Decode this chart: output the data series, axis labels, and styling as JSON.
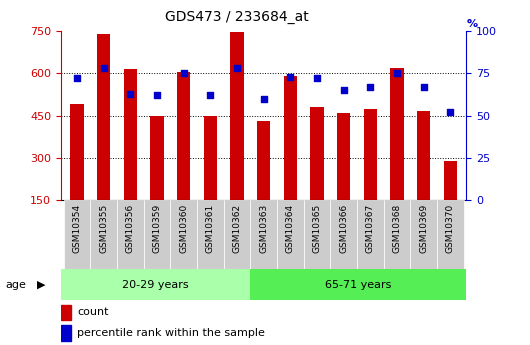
{
  "title": "GDS473 / 233684_at",
  "samples": [
    "GSM10354",
    "GSM10355",
    "GSM10356",
    "GSM10359",
    "GSM10360",
    "GSM10361",
    "GSM10362",
    "GSM10363",
    "GSM10364",
    "GSM10365",
    "GSM10366",
    "GSM10367",
    "GSM10368",
    "GSM10369",
    "GSM10370"
  ],
  "counts": [
    490,
    740,
    615,
    450,
    605,
    450,
    745,
    430,
    590,
    480,
    460,
    475,
    620,
    465,
    290
  ],
  "percentiles": [
    72,
    78,
    63,
    62,
    75,
    62,
    78,
    60,
    73,
    72,
    65,
    67,
    75,
    67,
    52
  ],
  "group1_label": "20-29 years",
  "group1_count": 7,
  "group2_label": "65-71 years",
  "group2_count": 8,
  "age_label": "age",
  "ylim_left": [
    150,
    750
  ],
  "ylim_right": [
    0,
    100
  ],
  "yticks_left": [
    150,
    300,
    450,
    600,
    750
  ],
  "yticks_right": [
    0,
    25,
    50,
    75,
    100
  ],
  "bar_color": "#cc0000",
  "dot_color": "#0000cc",
  "group1_bg": "#aaffaa",
  "group2_bg": "#55ee55",
  "tick_bg": "#cccccc",
  "legend_count_label": "count",
  "legend_pct_label": "percentile rank within the sample",
  "title_color": "#000000",
  "left_axis_color": "#cc0000",
  "right_axis_color": "#0000cc",
  "grid_color": "black",
  "bar_width": 0.5
}
